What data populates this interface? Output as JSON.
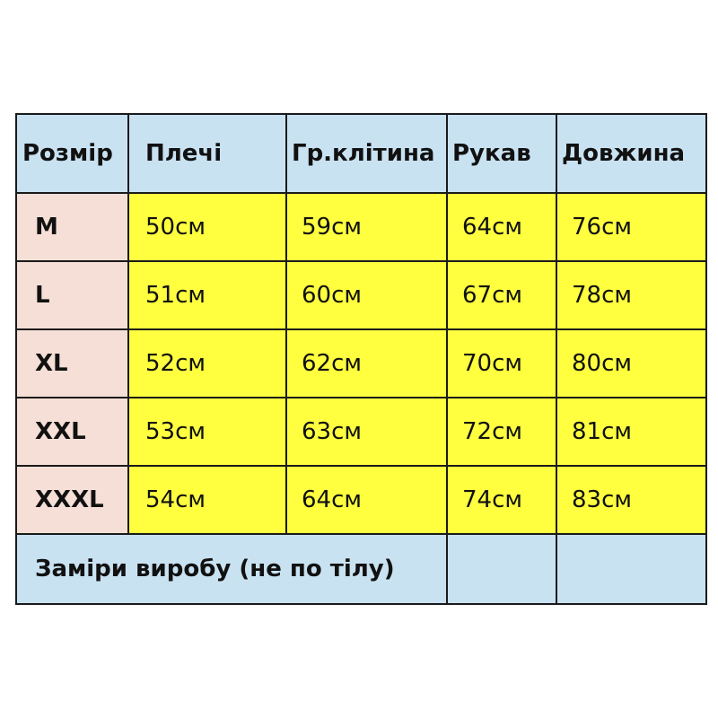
{
  "table": {
    "headers": [
      "Розмір",
      "Плечі",
      "Гр.клітина",
      "Рукав",
      "Довжина"
    ],
    "rows": [
      {
        "size": "M",
        "values": [
          "50см",
          "59см",
          "64см",
          "76см"
        ]
      },
      {
        "size": "L",
        "values": [
          "51см",
          "60см",
          "67см",
          "78см"
        ]
      },
      {
        "size": "XL",
        "values": [
          "52см",
          "62см",
          "70см",
          "80см"
        ]
      },
      {
        "size": "XXL",
        "values": [
          "53см",
          "63см",
          "72см",
          "81см"
        ]
      },
      {
        "size": "XXXL",
        "values": [
          "54см",
          "64см",
          "74см",
          "83см"
        ]
      }
    ],
    "footer_note": "Заміри виробу (не по тілу)"
  },
  "colors": {
    "header": "#c9e2f2",
    "size_column": "#f6dfd6",
    "values": "#ffff40"
  }
}
